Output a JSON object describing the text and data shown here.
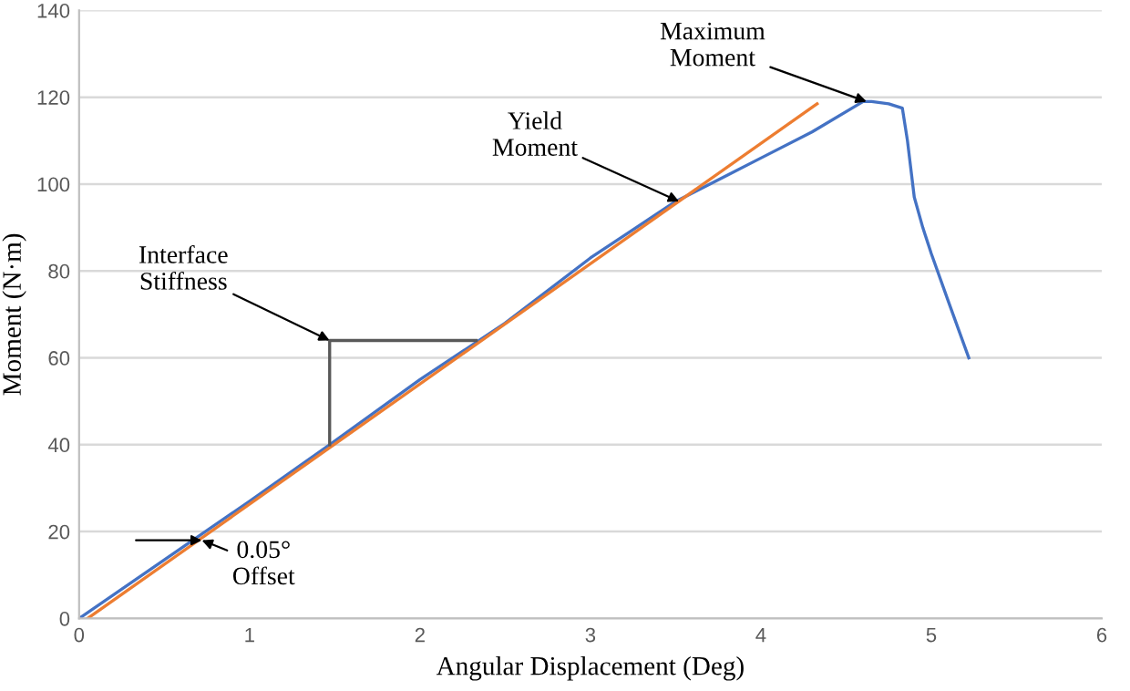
{
  "chart_data": {
    "type": "line",
    "xlabel": "Angular Displacement (Deg)",
    "ylabel": "Moment (N·m)",
    "xlim": [
      0,
      6
    ],
    "ylim": [
      0,
      140
    ],
    "xticks": [
      0,
      1,
      2,
      3,
      4,
      5,
      6
    ],
    "yticks": [
      0,
      20,
      40,
      60,
      80,
      100,
      120,
      140
    ],
    "grid": "y",
    "legend": false,
    "marker": "none",
    "line_style": "solid",
    "series": [
      {
        "color": "#4472c4",
        "x": [
          0,
          0.5,
          1.0,
          1.47,
          2.0,
          2.5,
          3.0,
          3.5,
          3.8,
          4.0,
          4.3,
          4.6,
          4.65,
          4.75,
          4.83,
          4.86,
          4.9,
          4.95,
          5.0,
          5.1,
          5.22
        ],
        "values": [
          0,
          13.5,
          27,
          40,
          55,
          68,
          83,
          96,
          102,
          106,
          112,
          119,
          119,
          118.5,
          117.5,
          110,
          97,
          90,
          84,
          73,
          60
        ]
      },
      {
        "color": "#ed7d31",
        "x": [
          0.05,
          4.33
        ],
        "values": [
          0,
          118.5
        ]
      },
      {
        "color": "#595959",
        "x": [
          1.47,
          1.47,
          2.33
        ],
        "values": [
          40,
          64,
          64
        ]
      }
    ],
    "annotations": [
      {
        "text": "Maximum\nMoment",
        "x": 4.62,
        "y": 119
      },
      {
        "text": "Yield\nMoment",
        "x": 3.52,
        "y": 96
      },
      {
        "text": "Interface\nStiffness",
        "x": 1.47,
        "y": 64
      },
      {
        "text": "0.05°\nOffset",
        "x": 0.72,
        "y": 18
      }
    ]
  }
}
